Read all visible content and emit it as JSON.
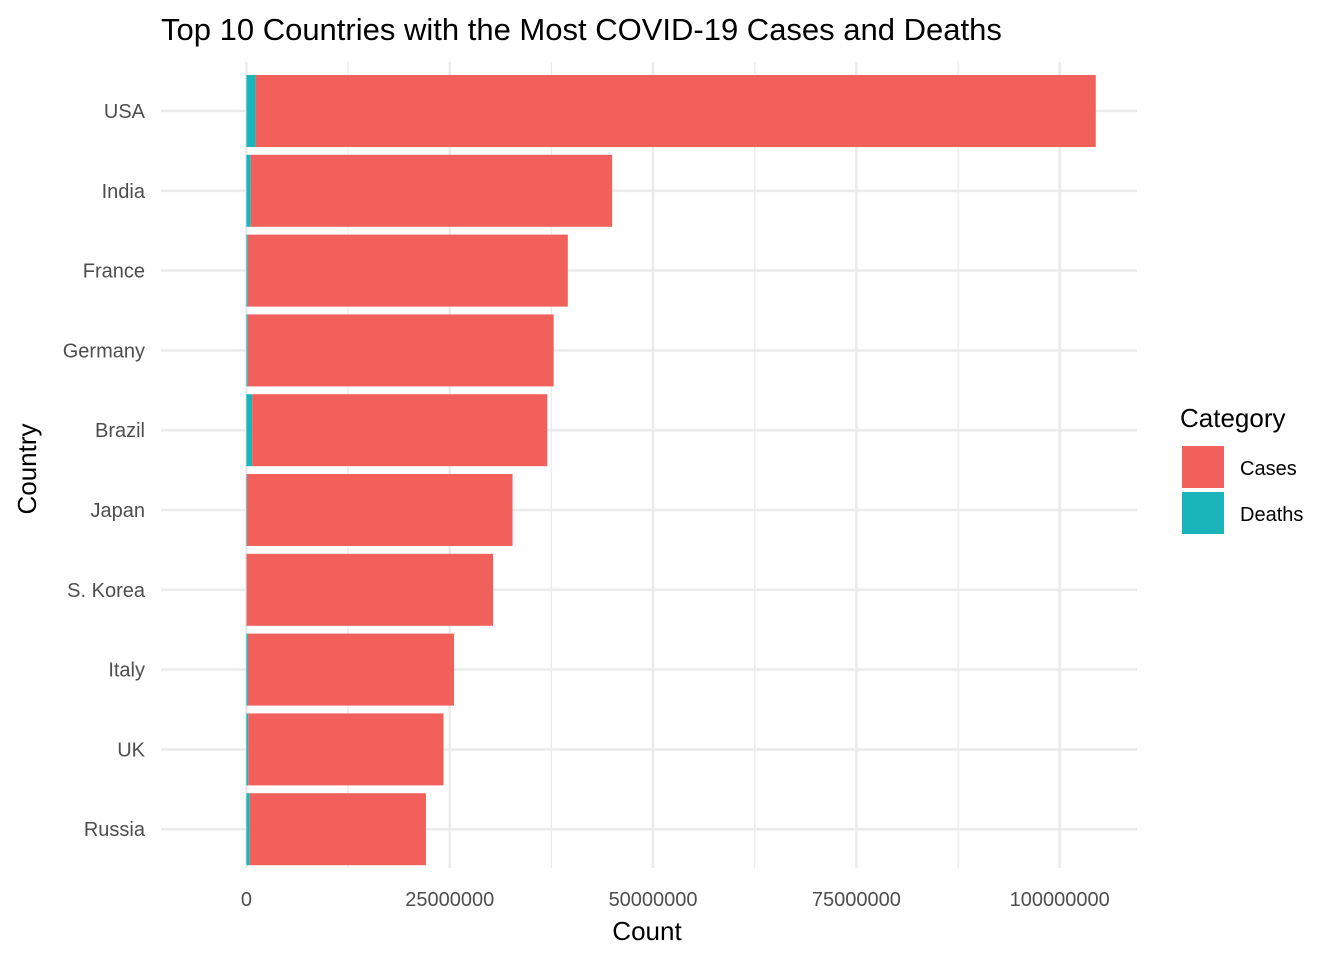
{
  "chart_data": {
    "type": "bar",
    "orientation": "horizontal",
    "stacked": true,
    "title": "Top 10 Countries with the Most COVID-19 Cases and Deaths",
    "xlabel": "Count",
    "ylabel": "Country",
    "categories": [
      "USA",
      "India",
      "France",
      "Germany",
      "Brazil",
      "Japan",
      "S. Korea",
      "Italy",
      "UK",
      "Russia"
    ],
    "series": [
      {
        "name": "Deaths",
        "color": "#19B5BA",
        "values": [
          1130000,
          530000,
          167000,
          168000,
          700000,
          72000,
          34000,
          188000,
          220000,
          398000
        ]
      },
      {
        "name": "Cases",
        "color": "#F2605C",
        "values": [
          103300000,
          44440000,
          39350000,
          37610000,
          36300000,
          32650000,
          30300000,
          25340000,
          24020000,
          21680000
        ]
      }
    ],
    "xlim": [
      -10500000,
      109500000
    ],
    "xticks": [
      0,
      25000000,
      50000000,
      75000000,
      100000000
    ],
    "xtick_labels": [
      "0",
      "25000000",
      "50000000",
      "75000000",
      "100000000"
    ],
    "grid": true,
    "legend": {
      "title": "Category",
      "position": "right",
      "items": [
        {
          "label": "Cases",
          "color": "#F2605C"
        },
        {
          "label": "Deaths",
          "color": "#19B5BA"
        }
      ]
    }
  }
}
